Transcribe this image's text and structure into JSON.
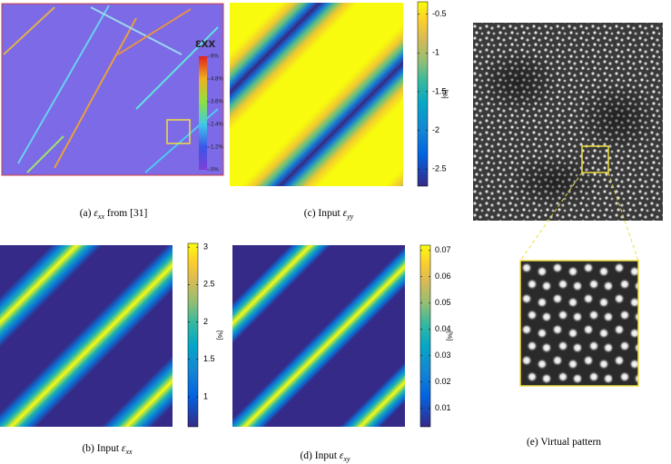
{
  "panels": {
    "a": {
      "caption": {
        "label": "(a)",
        "symbol": "ε",
        "sub": "xx",
        "text": "from [31]"
      },
      "legend": {
        "title": "εxx",
        "lim": [
          0,
          6
        ],
        "ticks": [
          {
            "value": 6,
            "label": "6%"
          },
          {
            "value": 4.8,
            "label": "4.8%"
          },
          {
            "value": 3.6,
            "label": "3.6%"
          },
          {
            "value": 2.4,
            "label": "2.4%"
          },
          {
            "value": 1.2,
            "label": "1.2%"
          },
          {
            "value": 0,
            "label": "0%"
          }
        ]
      }
    },
    "c": {
      "caption": {
        "label": "(c)",
        "text": "Input",
        "symbol": "ε",
        "sub": "yy"
      },
      "colorbar": {
        "lim": [
          -2.72,
          -0.34
        ],
        "ticks": [
          -0.5,
          -1,
          -1.5,
          -2,
          -2.5
        ],
        "unit": "[%]"
      }
    },
    "b": {
      "caption": {
        "label": "(b)",
        "text": "Input",
        "symbol": "ε",
        "sub": "xx"
      },
      "colorbar": {
        "lim": [
          0.6,
          3.05
        ],
        "ticks": [
          3,
          2.5,
          2,
          1.5,
          1
        ],
        "unit": "[%]"
      }
    },
    "d": {
      "caption": {
        "label": "(d)",
        "text": "Input",
        "symbol": "ε",
        "sub": "xy"
      },
      "colorbar": {
        "lim": [
          0.003,
          0.072
        ],
        "ticks": [
          0.07,
          0.06,
          0.05,
          0.04,
          0.03,
          0.02,
          0.01
        ],
        "unit": "[%]"
      }
    },
    "e": {
      "caption": {
        "label": "(e)",
        "text": "Virtual pattern"
      }
    }
  }
}
